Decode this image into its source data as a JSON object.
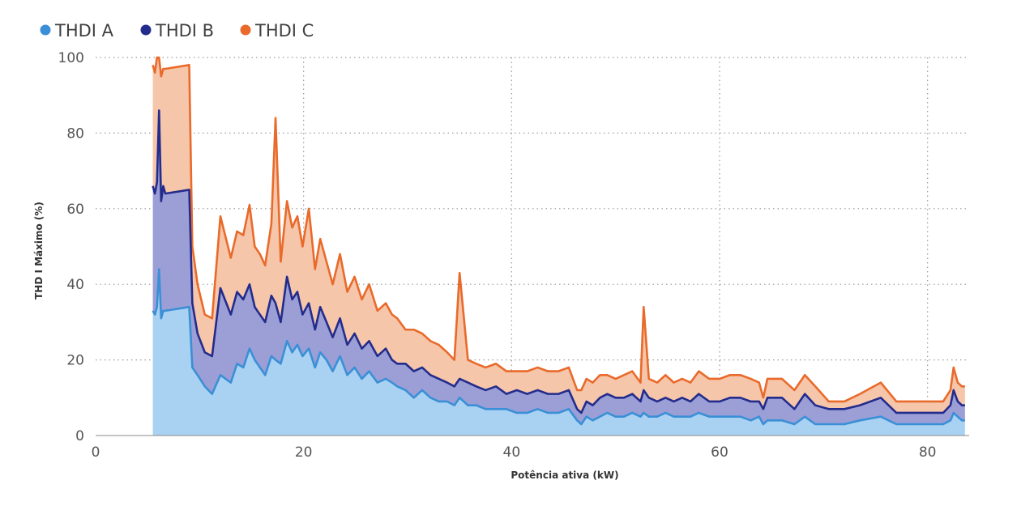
{
  "chart_data": {
    "type": "area",
    "title": "",
    "xlabel": "Potência ativa (kW)",
    "ylabel": "THD I Máximo (%)",
    "xlim": [
      0,
      84
    ],
    "ylim": [
      0,
      100
    ],
    "x_ticks": [
      0,
      20,
      40,
      60,
      80
    ],
    "y_ticks": [
      0,
      20,
      40,
      60,
      80,
      100
    ],
    "grid": true,
    "legend_position": "top-left",
    "x": [
      5.5,
      5.7,
      5.9,
      6.1,
      6.3,
      6.5,
      6.7,
      9.0,
      9.3,
      9.8,
      10.5,
      11.2,
      12.0,
      13.0,
      13.6,
      14.2,
      14.8,
      15.3,
      15.8,
      16.3,
      16.9,
      17.3,
      17.8,
      18.4,
      18.9,
      19.4,
      19.9,
      20.5,
      21.1,
      21.6,
      22.2,
      22.8,
      23.5,
      24.2,
      24.9,
      25.6,
      26.3,
      27.1,
      27.9,
      28.5,
      29.0,
      29.8,
      30.6,
      31.4,
      32.2,
      33.0,
      33.8,
      34.5,
      35.0,
      35.8,
      36.6,
      37.5,
      38.5,
      39.5,
      40.5,
      41.5,
      42.5,
      43.5,
      44.5,
      45.5,
      46.3,
      46.7,
      47.2,
      47.8,
      48.5,
      49.2,
      50.0,
      50.8,
      51.6,
      52.4,
      52.7,
      53.2,
      54.0,
      54.8,
      55.6,
      56.4,
      57.2,
      58.0,
      59.0,
      60.0,
      61.0,
      62.0,
      63.0,
      63.8,
      64.2,
      64.6,
      66.0,
      67.2,
      68.2,
      69.2,
      70.5,
      72.0,
      73.5,
      75.5,
      77.0,
      78.5,
      80.0,
      81.5,
      82.2,
      82.5,
      82.9,
      83.3,
      83.6
    ],
    "series": [
      {
        "name": "THDI A",
        "color": "#3a8fd6",
        "values": [
          33,
          32,
          34,
          44,
          31,
          33,
          33,
          34,
          18,
          16,
          13,
          11,
          16,
          14,
          19,
          18,
          23,
          20,
          18,
          16,
          21,
          20,
          19,
          25,
          22,
          24,
          21,
          23,
          18,
          22,
          20,
          17,
          21,
          16,
          18,
          15,
          17,
          14,
          15,
          14,
          13,
          12,
          10,
          12,
          10,
          9,
          9,
          8,
          10,
          8,
          8,
          7,
          7,
          7,
          6,
          6,
          7,
          6,
          6,
          7,
          4,
          3,
          5,
          4,
          5,
          6,
          5,
          5,
          6,
          5,
          6,
          5,
          5,
          6,
          5,
          5,
          5,
          6,
          5,
          5,
          5,
          5,
          4,
          5,
          3,
          4,
          4,
          3,
          5,
          3,
          3,
          3,
          4,
          5,
          3,
          3,
          3,
          3,
          4,
          6,
          5,
          4,
          4
        ]
      },
      {
        "name": "THDI B",
        "color": "#232c8c",
        "values": [
          66,
          64,
          67,
          86,
          62,
          66,
          64,
          65,
          35,
          27,
          22,
          21,
          39,
          32,
          38,
          36,
          40,
          34,
          32,
          30,
          37,
          35,
          30,
          42,
          36,
          38,
          32,
          35,
          28,
          34,
          30,
          26,
          31,
          24,
          27,
          23,
          25,
          21,
          23,
          20,
          19,
          19,
          17,
          18,
          16,
          15,
          14,
          13,
          15,
          14,
          13,
          12,
          13,
          11,
          12,
          11,
          12,
          11,
          11,
          12,
          7,
          6,
          9,
          8,
          10,
          11,
          10,
          10,
          11,
          9,
          12,
          10,
          9,
          10,
          9,
          10,
          9,
          11,
          9,
          9,
          10,
          10,
          9,
          9,
          7,
          10,
          10,
          7,
          11,
          8,
          7,
          7,
          8,
          10,
          6,
          6,
          6,
          6,
          8,
          12,
          9,
          8,
          8
        ]
      },
      {
        "name": "THDI C",
        "color": "#e96a2a",
        "values": [
          98,
          96,
          100,
          100,
          95,
          97,
          97,
          98,
          50,
          40,
          32,
          31,
          58,
          47,
          54,
          53,
          61,
          50,
          48,
          45,
          56,
          84,
          46,
          62,
          55,
          58,
          50,
          60,
          44,
          52,
          46,
          40,
          48,
          38,
          42,
          36,
          40,
          33,
          35,
          32,
          31,
          28,
          28,
          27,
          25,
          24,
          22,
          20,
          43,
          20,
          19,
          18,
          19,
          17,
          17,
          17,
          18,
          17,
          17,
          18,
          12,
          12,
          15,
          14,
          16,
          16,
          15,
          16,
          17,
          14,
          34,
          15,
          14,
          16,
          14,
          15,
          14,
          17,
          15,
          15,
          16,
          16,
          15,
          14,
          10,
          15,
          15,
          12,
          16,
          13,
          9,
          9,
          11,
          14,
          9,
          9,
          9,
          9,
          12,
          18,
          14,
          13,
          13
        ]
      }
    ]
  }
}
